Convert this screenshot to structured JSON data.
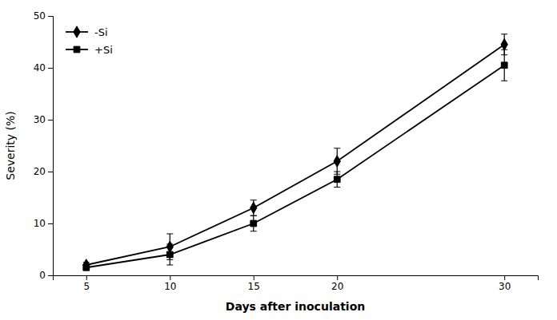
{
  "chart_data": {
    "type": "line",
    "x": [
      5,
      10,
      15,
      20,
      30
    ],
    "xlabel": "Days after inoculation",
    "ylabel": "Severity (%)",
    "xlim": [
      3,
      32
    ],
    "ylim": [
      0,
      50
    ],
    "xticks": [
      5,
      10,
      15,
      20,
      30
    ],
    "yticks": [
      0,
      10,
      20,
      30,
      40,
      50
    ],
    "grid": false,
    "legend": "upper left",
    "series": [
      {
        "name": "-Si",
        "color": "#000000",
        "marker": "diamond",
        "values": [
          2.0,
          5.5,
          13.0,
          22.0,
          44.5
        ],
        "errors": [
          0.5,
          2.5,
          1.5,
          2.5,
          2.0
        ]
      },
      {
        "name": "+Si",
        "color": "#000000",
        "marker": "square",
        "values": [
          1.5,
          4.0,
          10.0,
          18.5,
          40.5
        ],
        "errors": [
          0.4,
          2.0,
          1.5,
          1.5,
          3.0
        ]
      }
    ]
  }
}
